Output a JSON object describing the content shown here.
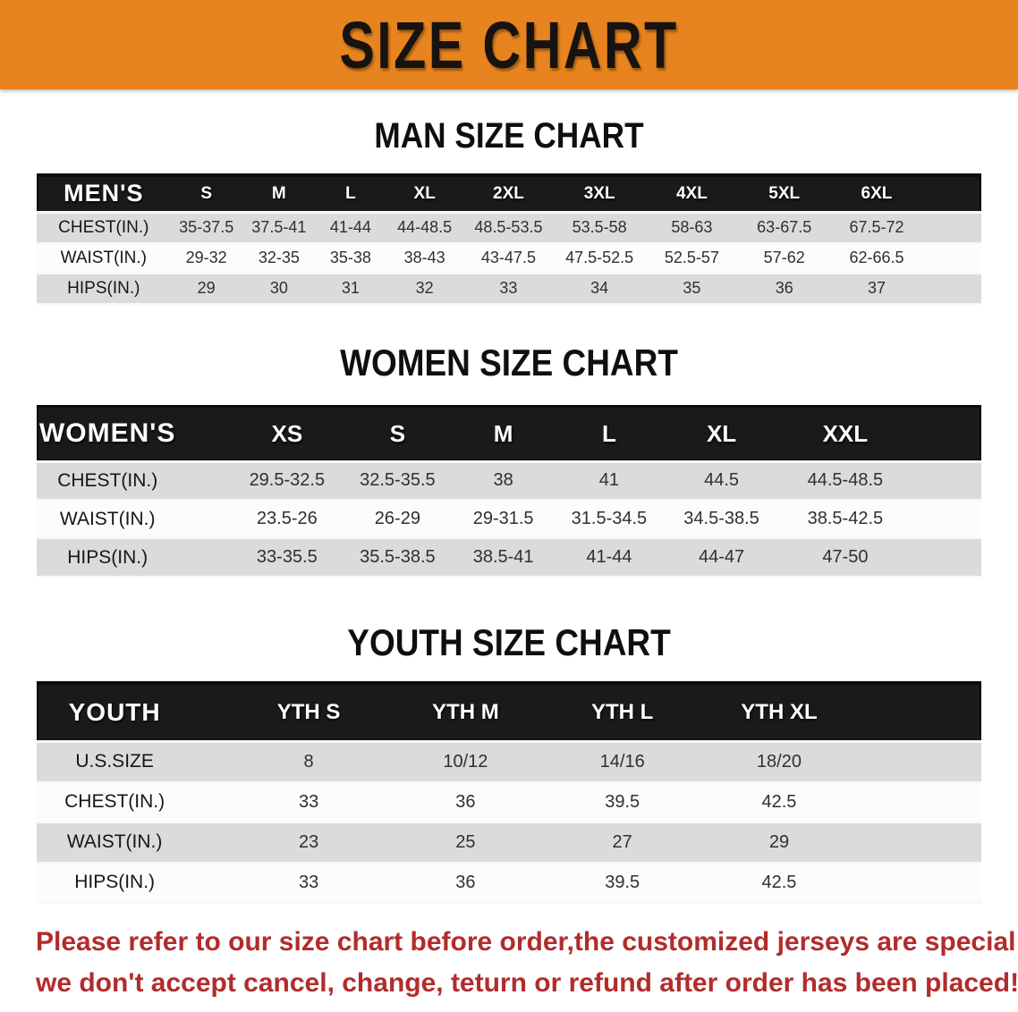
{
  "banner": {
    "title": "SIZE CHART"
  },
  "colors": {
    "banner_bg": "#E8841F",
    "header_band_bg": "#1C1A18",
    "stripe_gray": "#DBDBDB",
    "row_white": "#FCFCFC",
    "disclaimer_red": "#B22C2C"
  },
  "sections": [
    {
      "heading": "MAN SIZE CHART",
      "table": {
        "header_label": "MEN'S",
        "sizes": [
          "S",
          "M",
          "L",
          "XL",
          "2XL",
          "3XL",
          "4XL",
          "5XL",
          "6XL"
        ],
        "rows": [
          {
            "label": "CHEST(IN.)",
            "values": [
              "35-37.5",
              "37.5-41",
              "41-44",
              "44-48.5",
              "48.5-53.5",
              "53.5-58",
              "58-63",
              "63-67.5",
              "67.5-72"
            ]
          },
          {
            "label": "WAIST(IN.)",
            "values": [
              "29-32",
              "32-35",
              "35-38",
              "38-43",
              "43-47.5",
              "47.5-52.5",
              "52.5-57",
              "57-62",
              "62-66.5"
            ]
          },
          {
            "label": "HIPS(IN.)",
            "values": [
              "29",
              "30",
              "31",
              "32",
              "33",
              "34",
              "35",
              "36",
              "37"
            ]
          }
        ]
      }
    },
    {
      "heading": "WOMEN SIZE CHART",
      "table": {
        "header_label": "WOMEN'S",
        "sizes": [
          "XS",
          "S",
          "M",
          "L",
          "XL",
          "XXL"
        ],
        "rows": [
          {
            "label": "CHEST(IN.)",
            "values": [
              "29.5-32.5",
              "32.5-35.5",
              "38",
              "41",
              "44.5",
              "44.5-48.5"
            ]
          },
          {
            "label": "WAIST(IN.)",
            "values": [
              "23.5-26",
              "26-29",
              "29-31.5",
              "31.5-34.5",
              "34.5-38.5",
              "38.5-42.5"
            ]
          },
          {
            "label": "HIPS(IN.)",
            "values": [
              "33-35.5",
              "35.5-38.5",
              "38.5-41",
              "41-44",
              "44-47",
              "47-50"
            ]
          }
        ]
      }
    },
    {
      "heading": "YOUTH SIZE CHART",
      "table": {
        "header_label": "YOUTH",
        "sizes": [
          "YTH S",
          "YTH M",
          "YTH L",
          "YTH XL"
        ],
        "rows": [
          {
            "label": "U.S.SIZE",
            "values": [
              "8",
              "10/12",
              "14/16",
              "18/20"
            ]
          },
          {
            "label": "CHEST(IN.)",
            "values": [
              "33",
              "36",
              "39.5",
              "42.5"
            ]
          },
          {
            "label": "WAIST(IN.)",
            "values": [
              "23",
              "25",
              "27",
              "29"
            ]
          },
          {
            "label": "HIPS(IN.)",
            "values": [
              "33",
              "36",
              "39.5",
              "42.5"
            ]
          }
        ]
      }
    }
  ],
  "disclaimer": {
    "line1": "Please refer to our size chart before order,the customized jerseys are special products,",
    "line2": "we don't accept cancel, change, teturn or refund after order has been placed!"
  }
}
